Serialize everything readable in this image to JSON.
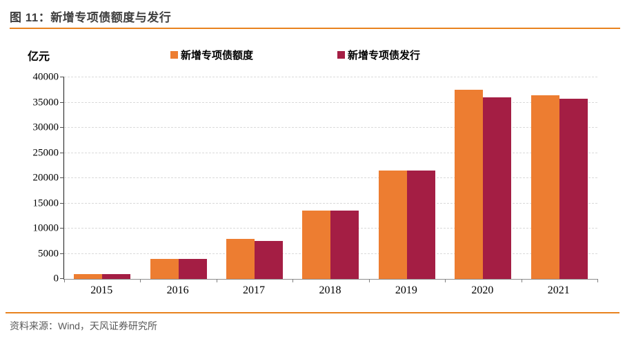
{
  "header": {
    "title": "图 11：新增专项债额度与发行"
  },
  "y_unit": "亿元",
  "legend": [
    {
      "key": "quota",
      "label": "新增专项债额度",
      "color": "#ED7D31"
    },
    {
      "key": "issuance",
      "label": "新增专项债发行",
      "color": "#A41E44"
    }
  ],
  "source": "资料来源：Wind，天风证券研究所",
  "colors": {
    "accent_rule": "#E8821E",
    "gridline": "#D9D9D9",
    "title_text": "#3F3F3F",
    "source_text": "#595959"
  },
  "chart_data": {
    "type": "bar",
    "title": "新增专项债额度与发行",
    "xlabel": "",
    "ylabel": "亿元",
    "categories": [
      "2015",
      "2016",
      "2017",
      "2018",
      "2019",
      "2020",
      "2021"
    ],
    "series": [
      {
        "name": "新增专项债额度",
        "key": "quota",
        "color": "#ED7D31",
        "values": [
          1000,
          4000,
          8000,
          13500,
          21500,
          37500,
          36500
        ]
      },
      {
        "name": "新增专项债发行",
        "key": "issuance",
        "color": "#A41E44",
        "values": [
          1000,
          4000,
          7500,
          13500,
          21500,
          36000,
          35800
        ]
      }
    ],
    "ylim": [
      0,
      40000
    ],
    "yticks": [
      0,
      5000,
      10000,
      15000,
      20000,
      25000,
      30000,
      35000,
      40000
    ],
    "grid": true,
    "gridstyle": "dashed",
    "legend_position": "top"
  }
}
